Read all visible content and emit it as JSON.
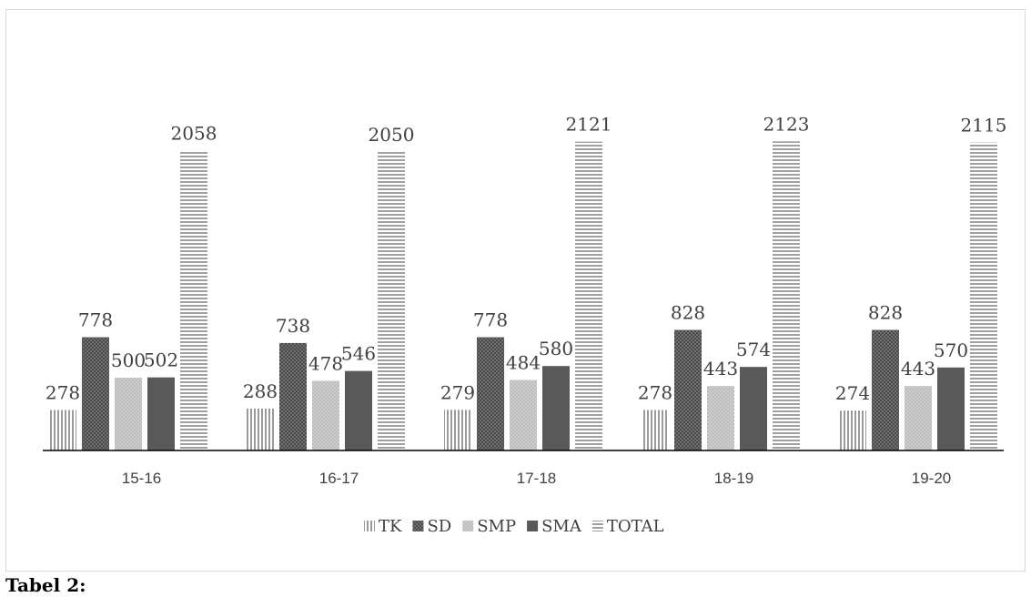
{
  "chart_data": {
    "type": "bar",
    "categories": [
      "15-16",
      "16-17",
      "17-18",
      "18-19",
      "19-20"
    ],
    "series": [
      {
        "name": "TK",
        "values": [
          278,
          288,
          279,
          278,
          274
        ],
        "color": "#a6a6a6",
        "pattern": "vertical-stripes"
      },
      {
        "name": "SD",
        "values": [
          778,
          738,
          778,
          828,
          828
        ],
        "color": "#595959",
        "pattern": "dotted-grid"
      },
      {
        "name": "SMP",
        "values": [
          500,
          478,
          484,
          443,
          443
        ],
        "color": "#c8c8c8",
        "pattern": "fine-crosshatch"
      },
      {
        "name": "SMA",
        "values": [
          502,
          546,
          580,
          574,
          570
        ],
        "color": "#595959",
        "pattern": "solid"
      },
      {
        "name": "TOTAL",
        "values": [
          2058,
          2050,
          2121,
          2123,
          2115
        ],
        "color": "#a6a6a6",
        "pattern": "horizontal-stripes"
      }
    ],
    "ylim": [
      0,
      2150
    ],
    "grid": false,
    "legend_position": "bottom"
  },
  "caption": "Tabel 2:"
}
